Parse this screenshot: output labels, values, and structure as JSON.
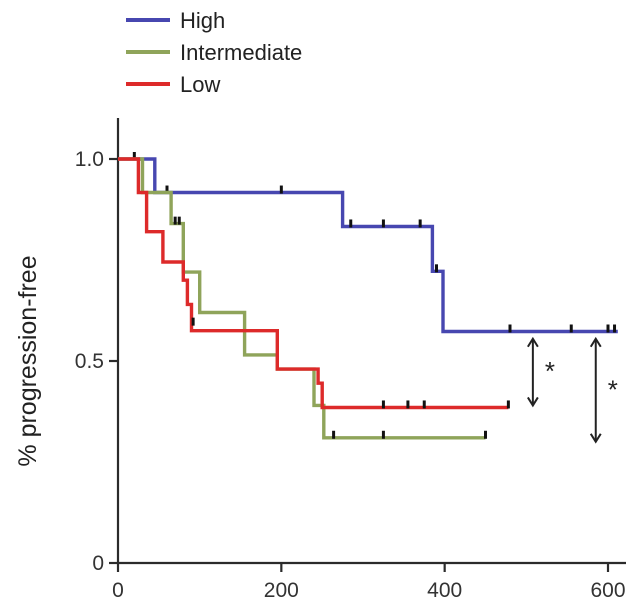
{
  "chart_data": {
    "type": "line",
    "title": "",
    "xlabel": "",
    "ylabel": "% progression-free",
    "xlim": [
      0,
      620
    ],
    "ylim": [
      0,
      1.05
    ],
    "xticks": [
      0,
      200,
      400,
      600
    ],
    "xtick_labels": [
      "0",
      "200",
      "400",
      "600"
    ],
    "yticks": [
      0,
      0.5,
      1.0
    ],
    "ytick_labels": [
      "0",
      "0.5",
      "1.0"
    ],
    "grid": false,
    "legend_position": "top-left",
    "series": [
      {
        "name": "High",
        "color": "#4747b0",
        "x": [
          0,
          45,
          45,
          275,
          275,
          385,
          385,
          398,
          398,
          612
        ],
        "y": [
          1.0,
          1.0,
          0.917,
          0.917,
          0.833,
          0.833,
          0.722,
          0.722,
          0.573,
          0.573
        ],
        "censored": [
          {
            "x": 20,
            "y": 1.0
          },
          {
            "x": 60,
            "y": 0.917
          },
          {
            "x": 200,
            "y": 0.917
          },
          {
            "x": 285,
            "y": 0.833
          },
          {
            "x": 325,
            "y": 0.833
          },
          {
            "x": 370,
            "y": 0.833
          },
          {
            "x": 390,
            "y": 0.722
          },
          {
            "x": 480,
            "y": 0.573
          },
          {
            "x": 555,
            "y": 0.573
          },
          {
            "x": 600,
            "y": 0.573
          },
          {
            "x": 608,
            "y": 0.573
          }
        ]
      },
      {
        "name": "Intermediate",
        "color": "#8fa45a",
        "x": [
          0,
          30,
          30,
          65,
          65,
          80,
          80,
          100,
          100,
          155,
          155,
          195,
          195,
          240,
          240,
          252,
          252,
          450
        ],
        "y": [
          1.0,
          1.0,
          0.917,
          0.917,
          0.84,
          0.84,
          0.72,
          0.72,
          0.62,
          0.62,
          0.515,
          0.515,
          0.48,
          0.48,
          0.39,
          0.39,
          0.31,
          0.31
        ],
        "censored": [
          {
            "x": 70,
            "y": 0.84
          },
          {
            "x": 264,
            "y": 0.31
          },
          {
            "x": 325,
            "y": 0.31
          },
          {
            "x": 450,
            "y": 0.31
          }
        ]
      },
      {
        "name": "Low",
        "color": "#dd2a2a",
        "x": [
          0,
          25,
          25,
          35,
          35,
          55,
          55,
          80,
          80,
          85,
          85,
          90,
          90,
          195,
          195,
          245,
          245,
          250,
          250,
          478
        ],
        "y": [
          1.0,
          1.0,
          0.917,
          0.917,
          0.82,
          0.82,
          0.745,
          0.745,
          0.7,
          0.7,
          0.64,
          0.64,
          0.575,
          0.575,
          0.48,
          0.48,
          0.445,
          0.445,
          0.385,
          0.385
        ],
        "censored": [
          {
            "x": 75,
            "y": 0.84
          },
          {
            "x": 92,
            "y": 0.59
          },
          {
            "x": 325,
            "y": 0.385
          },
          {
            "x": 355,
            "y": 0.385
          },
          {
            "x": 375,
            "y": 0.385
          },
          {
            "x": 478,
            "y": 0.385
          }
        ]
      }
    ],
    "annotations": [
      {
        "text": "*",
        "x": 508,
        "y_from": 0.555,
        "y_to": 0.39
      },
      {
        "text": "*",
        "x": 585,
        "y_from": 0.555,
        "y_to": 0.3
      }
    ]
  }
}
